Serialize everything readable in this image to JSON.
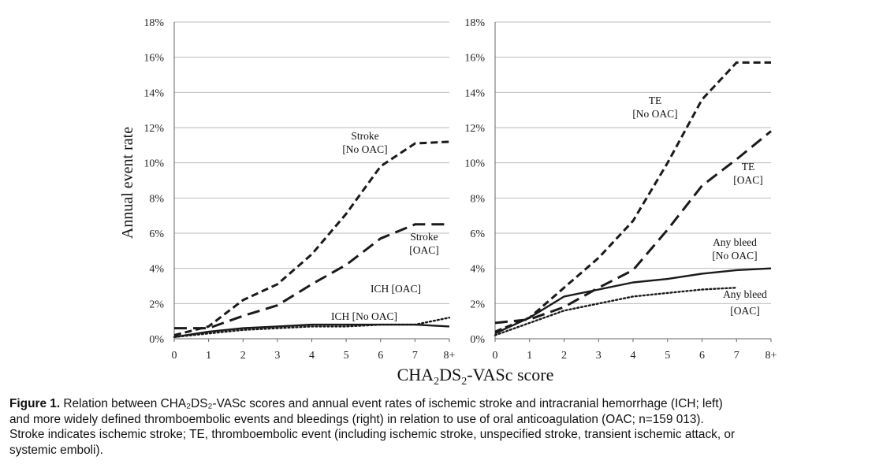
{
  "chart_data": [
    {
      "type": "line",
      "panel": "left",
      "ylabel": "Annual event rate",
      "categories": [
        "0",
        "1",
        "2",
        "3",
        "4",
        "5",
        "6",
        "7",
        "8+"
      ],
      "yticks": [
        "0%",
        "2%",
        "4%",
        "6%",
        "8%",
        "10%",
        "12%",
        "14%",
        "16%",
        "18%"
      ],
      "ylim": [
        0,
        18
      ],
      "grid": "horizontal",
      "series": [
        {
          "name": "Stroke [No OAC]",
          "style": "short-dash",
          "values": [
            0.2,
            0.7,
            2.2,
            3.1,
            4.8,
            7.1,
            9.8,
            11.1,
            11.2
          ]
        },
        {
          "name": "Stroke [OAC]",
          "style": "long-dash",
          "values": [
            0.6,
            0.6,
            1.3,
            1.9,
            3.1,
            4.2,
            5.7,
            6.5,
            6.5
          ]
        },
        {
          "name": "ICH [No OAC]",
          "style": "solid",
          "values": [
            0.1,
            0.4,
            0.6,
            0.7,
            0.8,
            0.8,
            0.8,
            0.8,
            0.7
          ]
        },
        {
          "name": "ICH [OAC]",
          "style": "dotted",
          "values": [
            0.1,
            0.3,
            0.5,
            0.6,
            0.7,
            0.7,
            0.8,
            0.8,
            1.2
          ]
        }
      ],
      "annotations": [
        "Stroke",
        "[No OAC]",
        "Stroke",
        "[OAC]",
        "ICH [OAC]",
        "ICH [No OAC]"
      ]
    },
    {
      "type": "line",
      "panel": "right",
      "categories": [
        "0",
        "1",
        "2",
        "3",
        "4",
        "5",
        "6",
        "7",
        "8+"
      ],
      "yticks": [
        "0%",
        "2%",
        "4%",
        "6%",
        "8%",
        "10%",
        "12%",
        "14%",
        "16%",
        "18%"
      ],
      "ylim": [
        0,
        18
      ],
      "grid": "horizontal",
      "series": [
        {
          "name": "TE [No OAC]",
          "style": "short-dash",
          "values": [
            0.4,
            1.2,
            2.9,
            4.6,
            6.7,
            10.0,
            13.6,
            15.7,
            15.7
          ]
        },
        {
          "name": "TE [OAC]",
          "style": "long-dash",
          "values": [
            0.9,
            1.1,
            1.8,
            2.9,
            3.9,
            6.2,
            8.7,
            10.2,
            11.8
          ]
        },
        {
          "name": "Any bleed [No OAC]",
          "style": "solid",
          "values": [
            0.3,
            1.2,
            2.4,
            2.8,
            3.2,
            3.4,
            3.7,
            3.9,
            4.0
          ]
        },
        {
          "name": "Any bleed [OAC]",
          "style": "dotted",
          "values": [
            0.2,
            0.9,
            1.6,
            2.0,
            2.4,
            2.6,
            2.8,
            2.9,
            null
          ]
        }
      ],
      "annotations": [
        "TE",
        "[No OAC]",
        "TE",
        "[OAC]",
        "Any bleed",
        "[No OAC]",
        "Any bleed",
        "[OAC]"
      ]
    }
  ],
  "xlabel": {
    "pre": "CHA",
    "sub1": "2",
    "mid": "DS",
    "sub2": "2",
    "post": "-VASc score"
  },
  "caption": {
    "label": "Figure 1.",
    "line1": " Relation between CHA₂DS₂-VASc scores and annual event rates of ischemic stroke and intracranial hemorrhage (ICH; left)",
    "line2": "and more widely defined thromboembolic events and bleedings (right) in relation to use of oral anticoagulation (OAC; n=159 013).",
    "line3": "Stroke indicates ischemic stroke; TE, thromboembolic event (including ischemic stroke, unspecified stroke, transient ischemic attack, or",
    "line4": "systemic emboli)."
  }
}
